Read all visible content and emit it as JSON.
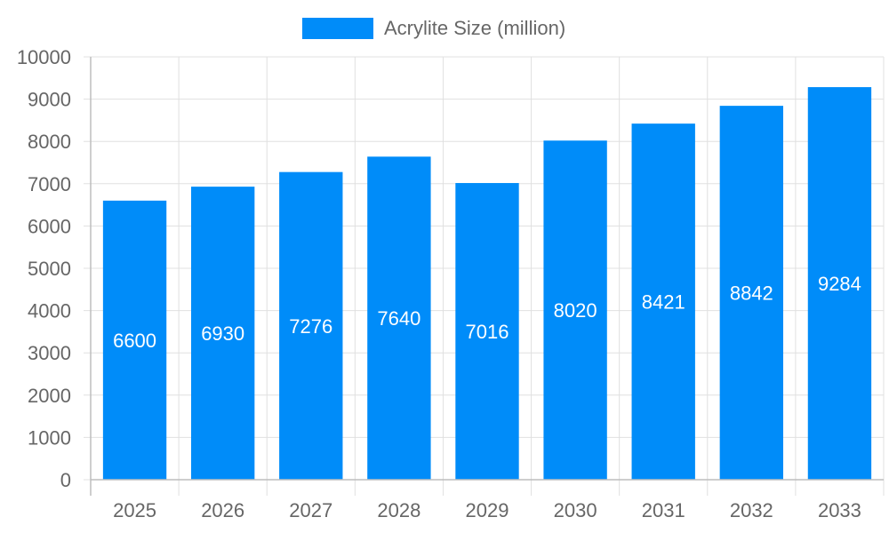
{
  "chart_data": {
    "type": "bar",
    "categories": [
      "2025",
      "2026",
      "2027",
      "2028",
      "2029",
      "2030",
      "2031",
      "2032",
      "2033"
    ],
    "series": [
      {
        "name": "Acrylite Size (million)",
        "values": [
          6600,
          6930,
          7276,
          7640,
          7016,
          8020,
          8421,
          8842,
          9284
        ]
      }
    ],
    "y_ticks": [
      "0",
      "1000",
      "2000",
      "3000",
      "4000",
      "5000",
      "6000",
      "7000",
      "8000",
      "9000",
      "10000"
    ],
    "ylim": [
      0,
      10000
    ],
    "grid": true,
    "legend_position": "top-center",
    "data_labels": true,
    "colors": {
      "bar": "#008cf9",
      "grid": "#e0e0e0",
      "axis": "#bdbdbd",
      "text": "#666666",
      "label": "#ffffff"
    }
  }
}
